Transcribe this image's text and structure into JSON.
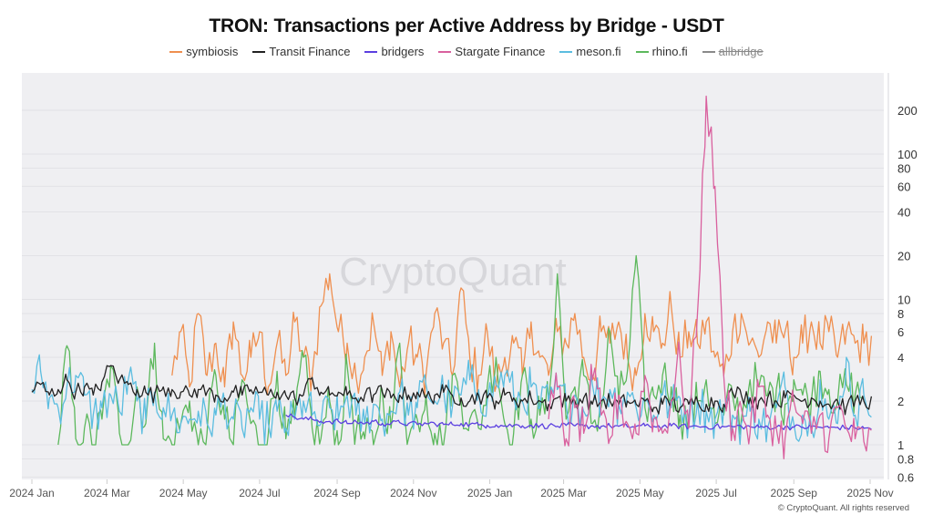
{
  "chart_data": {
    "type": "line",
    "title": "TRON: Transactions per Active Address by Bridge - USDT",
    "xlabel": "",
    "ylabel": "",
    "yscale": "log",
    "ylim": [
      0.6,
      300
    ],
    "y_ticks": [
      "200",
      "100",
      "80",
      "60",
      "40",
      "20",
      "10",
      "8",
      "6",
      "4",
      "2",
      "1",
      "0.8",
      "0.6"
    ],
    "x_ticks": [
      "2024 Jan",
      "2024 Mar",
      "2024 May",
      "2024 Jul",
      "2024 Sep",
      "2024 Nov",
      "2025 Jan",
      "2025 Mar",
      "2025 May",
      "2025 Jul",
      "2025 Sep",
      "2025 Nov"
    ],
    "x_start": "2024-01-01",
    "x_interval_days": 7,
    "grid": true,
    "legend_position": "top-center",
    "watermark": "CryptoQuant",
    "series": [
      {
        "name": "symbiosis",
        "color": "#ef8f4f",
        "visible": true,
        "start_week": 16,
        "values": [
          3,
          6,
          2.5,
          8,
          3,
          5,
          2.5,
          7,
          3,
          4,
          6,
          2.5,
          5,
          3,
          7,
          4,
          3,
          9,
          15,
          6,
          5,
          3,
          4,
          7,
          3,
          6,
          2.5,
          5,
          4,
          3,
          8,
          5,
          3,
          12,
          4,
          3,
          6,
          2.5,
          4,
          5,
          3,
          7,
          4,
          3,
          6,
          5,
          8,
          4,
          3,
          6,
          5,
          7,
          4,
          3,
          8,
          6,
          5,
          9,
          4,
          6,
          5,
          7,
          4,
          3,
          6,
          8,
          5,
          4,
          7,
          5,
          6,
          4,
          5,
          7,
          5,
          6,
          4,
          6,
          5,
          5
        ]
      },
      {
        "name": "Transit Finance",
        "color": "#222222",
        "visible": true,
        "start_week": 0,
        "values": [
          2.3,
          2.6,
          2.2,
          2.4,
          2.8,
          2.3,
          2.5,
          2.2,
          2.7,
          3.5,
          2.8,
          2.6,
          2.4,
          2.3,
          2.2,
          2.5,
          2.4,
          2.3,
          2.2,
          2.4,
          2.3,
          2.2,
          2.1,
          2.3,
          2.2,
          2.4,
          2.3,
          2.2,
          2.3,
          2.2,
          2.1,
          2.2,
          2.9,
          2.3,
          2.2,
          2.3,
          2.2,
          2.1,
          2.2,
          2.2,
          2.3,
          2.1,
          2.2,
          2.2,
          2.3,
          2.1,
          2.2,
          2.3,
          2.2,
          2.1,
          2.0,
          2.2,
          2.1,
          2.0,
          2.2,
          2.1,
          2.0,
          2.1,
          2.0,
          1.9,
          2.1,
          2.0,
          2.0,
          2.1,
          1.9,
          2.0,
          2.0,
          1.9,
          2.0,
          1.9,
          2.0,
          1.8,
          1.9,
          2.0,
          1.8,
          1.9,
          2.0,
          1.9,
          2.0,
          1.9,
          2.3,
          2.2,
          2.1,
          2.0,
          2.1,
          2.0,
          2.1,
          2.2,
          2.0,
          2.1,
          2.0,
          1.9,
          2.0,
          1.8,
          2.0,
          2.0
        ]
      },
      {
        "name": "bridgers",
        "color": "#5b3fe0",
        "visible": true,
        "start_week": 29,
        "values": [
          1.6,
          1.55,
          1.5,
          1.5,
          1.45,
          1.45,
          1.45,
          1.4,
          1.45,
          1.4,
          1.45,
          1.4,
          1.4,
          1.42,
          1.4,
          1.38,
          1.4,
          1.4,
          1.38,
          1.38,
          1.4,
          1.38,
          1.37,
          1.36,
          1.37,
          1.35,
          1.36,
          1.35,
          1.36,
          1.35,
          1.35,
          1.34,
          1.36,
          1.35,
          1.34,
          1.35,
          1.34,
          1.35,
          1.34,
          1.33,
          1.34,
          1.35,
          1.34,
          1.33,
          1.35,
          1.34,
          1.33,
          1.34,
          1.33,
          1.34,
          1.33,
          1.33,
          1.34,
          1.33,
          1.32,
          1.33,
          1.32,
          1.33,
          1.32,
          1.32,
          1.33,
          1.32,
          1.31,
          1.32,
          1.31,
          1.31,
          1.3
        ]
      },
      {
        "name": "Stargate Finance",
        "color": "#d9609e",
        "visible": true,
        "start_week": 59,
        "values": [
          1.5,
          2.5,
          1.1,
          1.8,
          1.2,
          2.8,
          1.6,
          1.1,
          2.2,
          1.4,
          1.2,
          3,
          1.5,
          1.2,
          2,
          4,
          1.3,
          8,
          250,
          60,
          3,
          1.3,
          1.8,
          1.2,
          2.5,
          1.6,
          1.3,
          1.1,
          2,
          1.4,
          1.2,
          1.6,
          1.1,
          1.8,
          1.3,
          1.1,
          1.05
        ]
      },
      {
        "name": "meson.fi",
        "color": "#5bbde0",
        "visible": true,
        "start_week": 0,
        "values": [
          2.4,
          3.2,
          2.1,
          1.8,
          2.5,
          3.0,
          2.2,
          1.6,
          1.8,
          2.2,
          1.7,
          2.8,
          2.0,
          1.5,
          2.3,
          1.8,
          1.6,
          1.4,
          1.5,
          1.7,
          1.4,
          1.6,
          2.0,
          1.5,
          1.3,
          1.8,
          1.5,
          1.4,
          1.7,
          1.3,
          1.5,
          2.0,
          1.6,
          1.4,
          1.8,
          1.5,
          2.2,
          1.6,
          1.4,
          1.9,
          1.5,
          1.7,
          2.3,
          1.6,
          1.8,
          2.6,
          2.0,
          2.4,
          1.8,
          2.2,
          2.8,
          2.4,
          2.0,
          2.6,
          3.0,
          2.2,
          2.0,
          2.5,
          1.8,
          2.0,
          2.4,
          1.9,
          2.2,
          1.7,
          2.6,
          2.0,
          2.4,
          1.9,
          2.3,
          1.8,
          2.0,
          1.6,
          2.2,
          1.8,
          2.1,
          1.5,
          2.0,
          1.7,
          1.5,
          1.8,
          1.6,
          1.4,
          1.7,
          1.5,
          1.3,
          1.8,
          2.5,
          1.4,
          1.6,
          1.3,
          2.8,
          1.5,
          1.4,
          4,
          1.6,
          2.2
        ]
      },
      {
        "name": "rhino.fi",
        "color": "#5cb85c",
        "visible": true,
        "start_week": 3,
        "values": [
          1,
          4.8,
          1.1,
          1.3,
          1,
          1.5,
          3.5,
          1.2,
          1,
          2.5,
          1.4,
          5,
          1.1,
          1,
          1.4,
          2,
          1,
          1.2,
          3,
          1.5,
          1,
          2.8,
          1.4,
          1,
          1.2,
          3.2,
          1.1,
          1.5,
          4,
          1.3,
          1.1,
          2,
          1,
          3.5,
          1.2,
          1.1,
          1,
          2.4,
          1.3,
          5,
          1.1,
          1.5,
          2.2,
          1.2,
          1,
          3,
          2,
          1.5,
          1.3,
          2.5,
          4,
          1.4,
          1.2,
          3,
          1.5,
          1.6,
          2,
          15,
          1.5,
          2.5,
          3,
          1.4,
          1.8,
          6,
          2,
          3.2,
          20,
          1.8,
          2.2,
          3,
          2.5,
          1.6,
          1.5,
          2,
          2.8,
          1.4,
          1.6,
          2.2,
          1.5,
          2.8,
          2.5,
          2.2,
          2.4,
          1.9,
          2.8,
          2.2,
          2.0,
          3.2,
          2.4,
          2.0,
          2.6,
          2.2
        ]
      },
      {
        "name": "allbridge",
        "color": "#8a8a8a",
        "visible": false,
        "start_week": 0,
        "values": []
      }
    ]
  },
  "footer": "© CryptoQuant. All rights reserved"
}
